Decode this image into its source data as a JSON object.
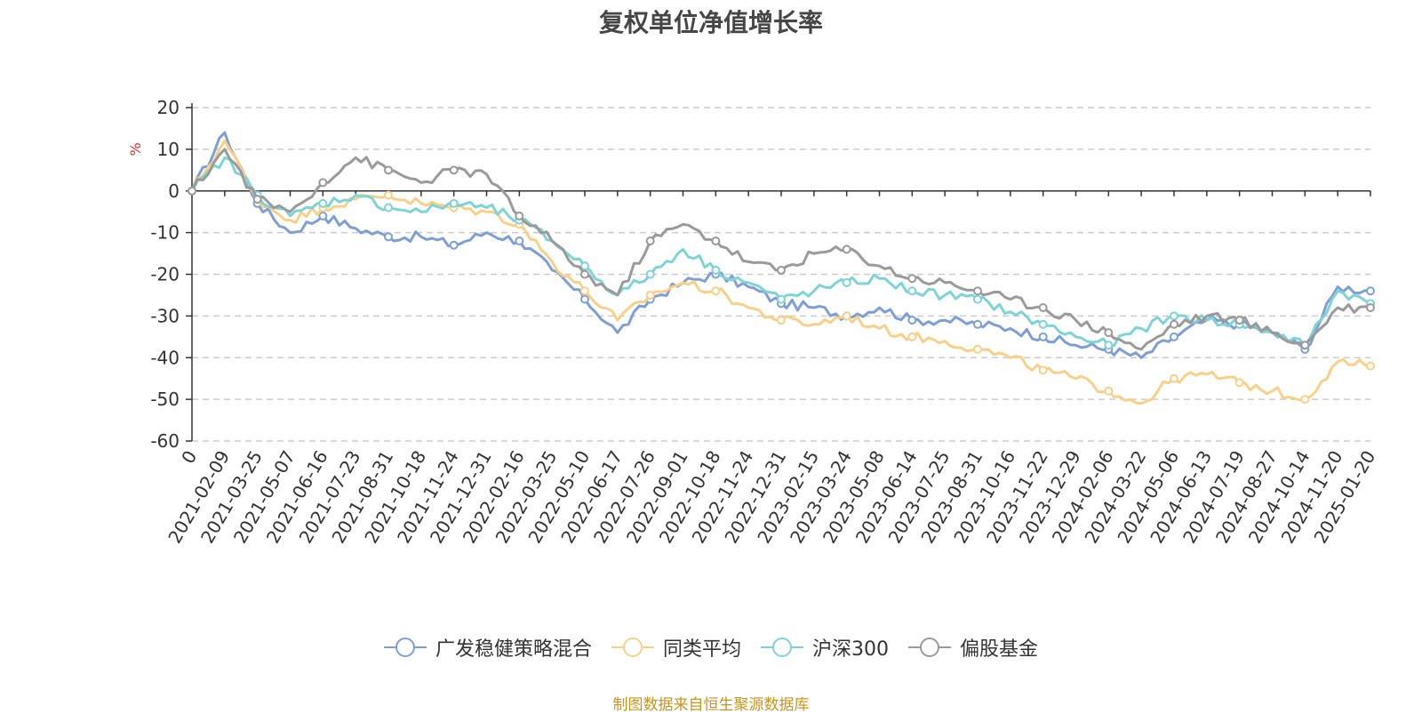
{
  "title": "复权单位净值增长率",
  "source_note": "制图数据来自恒生聚源数据库",
  "colors": {
    "axis": "#333333",
    "grid": "#cccccc",
    "ylabel": "#e03030"
  },
  "chart_data": {
    "type": "line",
    "title": "复权单位净值增长率",
    "ylabel": "%",
    "ylim": [
      -60,
      20
    ],
    "yticks": [
      20,
      10,
      0,
      -10,
      -20,
      -30,
      -40,
      -50,
      -60
    ],
    "grid": true,
    "legend_position": "bottom",
    "x_tick_labels": [
      "0",
      "2021-02-09",
      "2021-03-25",
      "2021-05-07",
      "2021-06-16",
      "2021-07-23",
      "2021-08-31",
      "2021-10-18",
      "2021-11-24",
      "2021-12-31",
      "2022-02-16",
      "2022-03-25",
      "2022-05-10",
      "2022-06-17",
      "2022-07-26",
      "2022-09-01",
      "2022-10-18",
      "2022-11-24",
      "2022-12-31",
      "2023-02-15",
      "2023-03-24",
      "2023-05-08",
      "2023-06-14",
      "2023-07-25",
      "2023-08-31",
      "2023-10-16",
      "2023-11-22",
      "2023-12-29",
      "2024-02-06",
      "2024-03-22",
      "2024-05-06",
      "2024-06-13",
      "2024-07-19",
      "2024-08-27",
      "2024-10-14",
      "2024-11-20",
      "2025-01-20"
    ],
    "series": [
      {
        "name": "广发稳健策略混合",
        "color": "#7f9fd4",
        "values": [
          0,
          14,
          -3,
          -10,
          -6,
          -9,
          -11,
          -11,
          -13,
          -10,
          -12,
          -19,
          -26,
          -34,
          -26,
          -22,
          -20,
          -23,
          -27,
          -28,
          -30,
          -28,
          -31,
          -31,
          -32,
          -33,
          -35,
          -37,
          -38,
          -40,
          -35,
          -31,
          -32,
          -34,
          -38,
          -23,
          -24
        ]
      },
      {
        "name": "同类平均",
        "color": "#f7d08a",
        "values": [
          0,
          12,
          -2,
          -7,
          -4,
          -2,
          -1,
          -3,
          -4,
          -5,
          -8,
          -17,
          -24,
          -31,
          -25,
          -22,
          -24,
          -28,
          -31,
          -32,
          -30,
          -33,
          -35,
          -36,
          -38,
          -40,
          -43,
          -45,
          -48,
          -51,
          -45,
          -44,
          -46,
          -48,
          -50,
          -41,
          -42
        ]
      },
      {
        "name": "沪深300",
        "color": "#7fd3d4",
        "values": [
          0,
          8,
          -1,
          -6,
          -3,
          -1,
          -4,
          -5,
          -3,
          -4,
          -7,
          -12,
          -18,
          -25,
          -20,
          -14,
          -19,
          -22,
          -26,
          -24,
          -22,
          -21,
          -24,
          -25,
          -26,
          -29,
          -32,
          -35,
          -37,
          -33,
          -30,
          -31,
          -32,
          -34,
          -37,
          -24,
          -27
        ]
      },
      {
        "name": "偏股基金",
        "color": "#9a9a9a",
        "values": [
          0,
          10,
          -2,
          -5,
          2,
          8,
          5,
          2,
          5,
          4,
          -6,
          -12,
          -20,
          -25,
          -12,
          -8,
          -12,
          -17,
          -19,
          -15,
          -14,
          -18,
          -21,
          -22,
          -24,
          -26,
          -28,
          -31,
          -34,
          -38,
          -32,
          -30,
          -31,
          -34,
          -37,
          -28,
          -28
        ]
      }
    ]
  }
}
